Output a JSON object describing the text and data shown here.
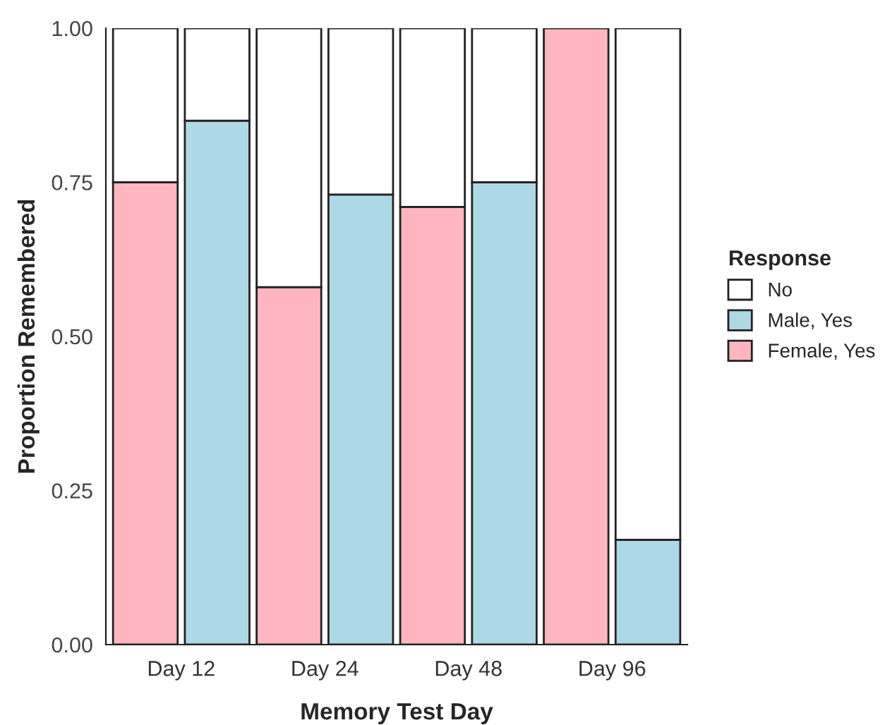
{
  "chart_data": {
    "type": "bar",
    "stacked": true,
    "categories": [
      null,
      null,
      null,
      null,
      null,
      null,
      null,
      null
    ],
    "ylabel": "Proportion Remembered",
    "xlabel": "Memory Test Day",
    "ylim": [
      0,
      1
    ],
    "yticks": [
      {
        "value": 0,
        "label": "0.00"
      },
      {
        "value": 0.25,
        "label": "0.25"
      },
      {
        "value": 0.5,
        "label": "0.50"
      },
      {
        "value": 0.75,
        "label": "0.75"
      },
      {
        "value": 1,
        "label": "1.00"
      }
    ],
    "legend": "right",
    "legend_title": "Response",
    "annotations": [
      "Day 12",
      "Day 24",
      "Day 48",
      "Day 96"
    ],
    "series": [
      {
        "name": "Female, Yes",
        "color": "#ffb6c1",
        "values": [
          0.75,
          null,
          0.58,
          null,
          0.71,
          null,
          1.0,
          null
        ]
      },
      {
        "name": "Male, Yes",
        "color": "#add8e6",
        "values": [
          null,
          0.85,
          null,
          0.73,
          null,
          0.75,
          null,
          0.17
        ]
      },
      {
        "name": "No",
        "color": "#ffffff",
        "values": [
          0.25,
          0.15,
          0.42,
          0.27,
          0.29,
          0.25,
          null,
          0.83
        ]
      }
    ]
  }
}
